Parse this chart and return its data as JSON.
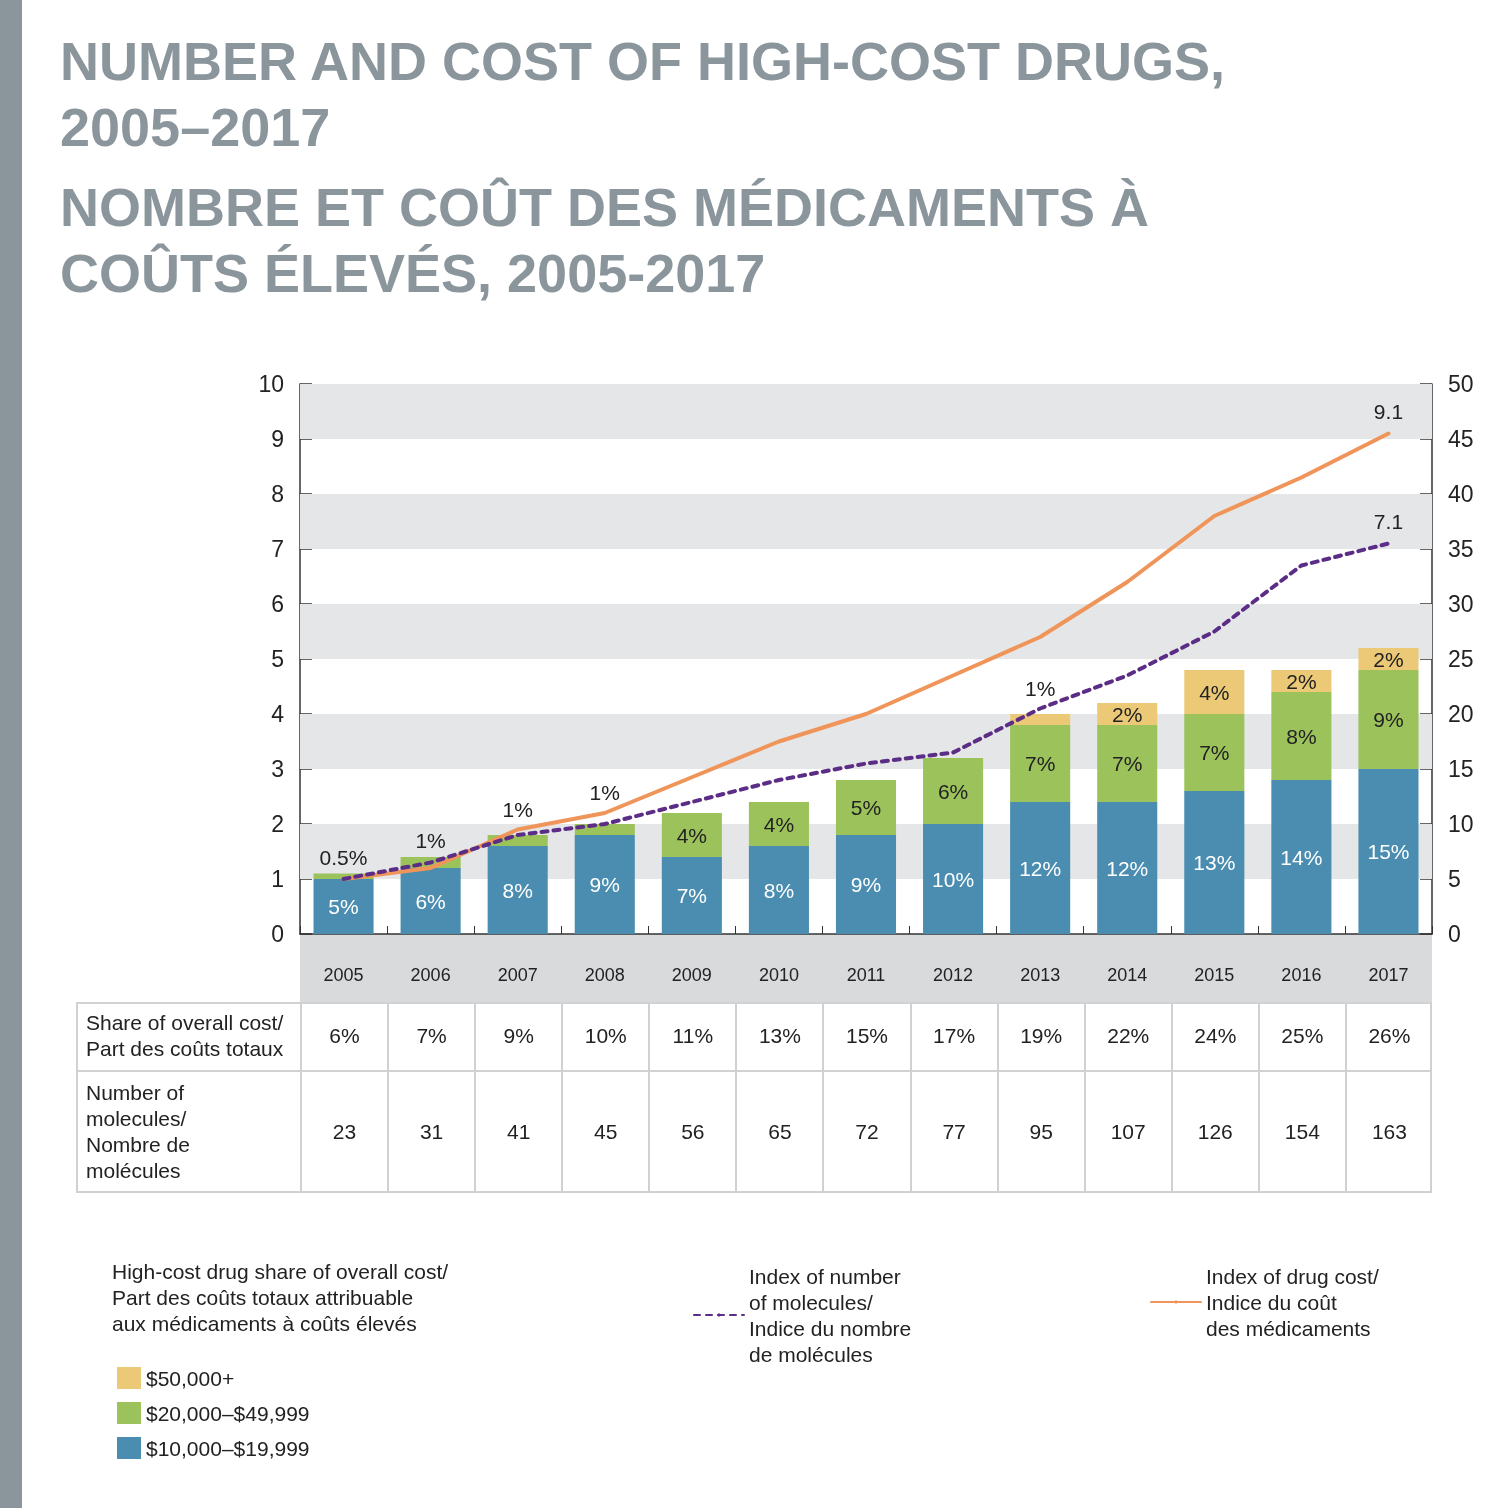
{
  "chart_data": {
    "type": "bar",
    "title": "NUMBER AND COST OF HIGH-COST DRUGS, 2005–2017",
    "subtitle": "NOMBRE ET COÛT DES MÉDICAMENTS À COÛTS ÉLEVÉS, 2005-2017",
    "categories": [
      "2005",
      "2006",
      "2007",
      "2008",
      "2009",
      "2010",
      "2011",
      "2012",
      "2013",
      "2014",
      "2015",
      "2016",
      "2017"
    ],
    "series": [
      {
        "name": "$10,000–$19,999",
        "axis": "y2",
        "color": "#4a8db0",
        "values": [
          5,
          6,
          8,
          9,
          7,
          8,
          9,
          10,
          12,
          12,
          13,
          14,
          15
        ],
        "value_labels": [
          "5%",
          "6%",
          "8%",
          "9%",
          "7%",
          "8%",
          "9%",
          "10%",
          "12%",
          "12%",
          "13%",
          "14%",
          "15%"
        ]
      },
      {
        "name": "$20,000–$49,999",
        "axis": "y2",
        "color": "#9cc25c",
        "values": [
          0.5,
          1,
          1,
          1,
          4,
          4,
          5,
          6,
          7,
          7,
          7,
          8,
          9
        ],
        "value_labels": [
          "0.5%",
          "1%",
          "1%",
          "1%",
          "4%",
          "4%",
          "5%",
          "6%",
          "7%",
          "7%",
          "7%",
          "8%",
          "9%"
        ]
      },
      {
        "name": "$50,000+",
        "axis": "y2",
        "color": "#ebc976",
        "values": [
          null,
          null,
          null,
          null,
          null,
          null,
          null,
          null,
          1,
          2,
          4,
          2,
          2
        ],
        "value_labels": [
          null,
          null,
          null,
          null,
          null,
          null,
          null,
          null,
          "1%",
          "2%",
          "4%",
          "2%",
          "2%"
        ]
      },
      {
        "name": "Index of number\nof molecules/\nIndice du nombre\nde molécules",
        "type": "line",
        "color": "#5b2d86",
        "line_style": "dashed",
        "values": [
          1.0,
          1.3,
          1.8,
          2.0,
          2.4,
          2.8,
          3.1,
          3.3,
          4.1,
          4.7,
          5.5,
          6.7,
          7.1
        ],
        "value_labels": [
          null,
          null,
          null,
          null,
          null,
          null,
          null,
          null,
          null,
          null,
          null,
          null,
          "7.1"
        ]
      },
      {
        "name": "Index of drug cost/\nIndice du coût\ndes médicaments",
        "type": "line",
        "color": "#f0955a",
        "line_style": "solid",
        "values": [
          1.0,
          1.2,
          1.9,
          2.2,
          2.85,
          3.5,
          4.0,
          4.7,
          5.4,
          6.4,
          7.6,
          8.3,
          9.1
        ],
        "value_labels": [
          null,
          null,
          null,
          null,
          null,
          null,
          null,
          null,
          null,
          null,
          null,
          null,
          "9.1"
        ]
      }
    ],
    "stacked": true,
    "ylim": [
      0,
      10
    ],
    "yticks": [
      0,
      1,
      2,
      3,
      4,
      5,
      6,
      7,
      8,
      9,
      10
    ],
    "y2lim": [
      0,
      50
    ],
    "y2ticks": [
      0,
      5,
      10,
      15,
      20,
      25,
      30,
      35,
      40,
      45,
      50
    ],
    "bands": [
      {
        "axis": "y",
        "from": 1,
        "to": 2,
        "color": "#e5e6e7"
      },
      {
        "axis": "y",
        "from": 3,
        "to": 4,
        "color": "#e5e6e7"
      },
      {
        "axis": "y",
        "from": 5,
        "to": 6,
        "color": "#e5e6e7"
      },
      {
        "axis": "y",
        "from": 7,
        "to": 8,
        "color": "#e5e6e7"
      },
      {
        "axis": "y",
        "from": 9,
        "to": 10,
        "color": "#e5e6e7"
      }
    ],
    "marker": "none",
    "legend": "bottom",
    "legend_title": "High-cost drug share of overall cost/\nPart des coûts totaux attribuable\naux médicaments à coûts élevés",
    "annotations": [
      "Share of overall cost/\nPart des coûts totaux",
      "6%",
      "7%",
      "9%",
      "10%",
      "11%",
      "13%",
      "15%",
      "17%",
      "19%",
      "22%",
      "24%",
      "25%",
      "26%",
      "Number of\nmolecules/\nNombre de\nmolécules",
      "23",
      "31",
      "41",
      "45",
      "56",
      "65",
      "72",
      "77",
      "95",
      "107",
      "126",
      "154",
      "163"
    ]
  }
}
